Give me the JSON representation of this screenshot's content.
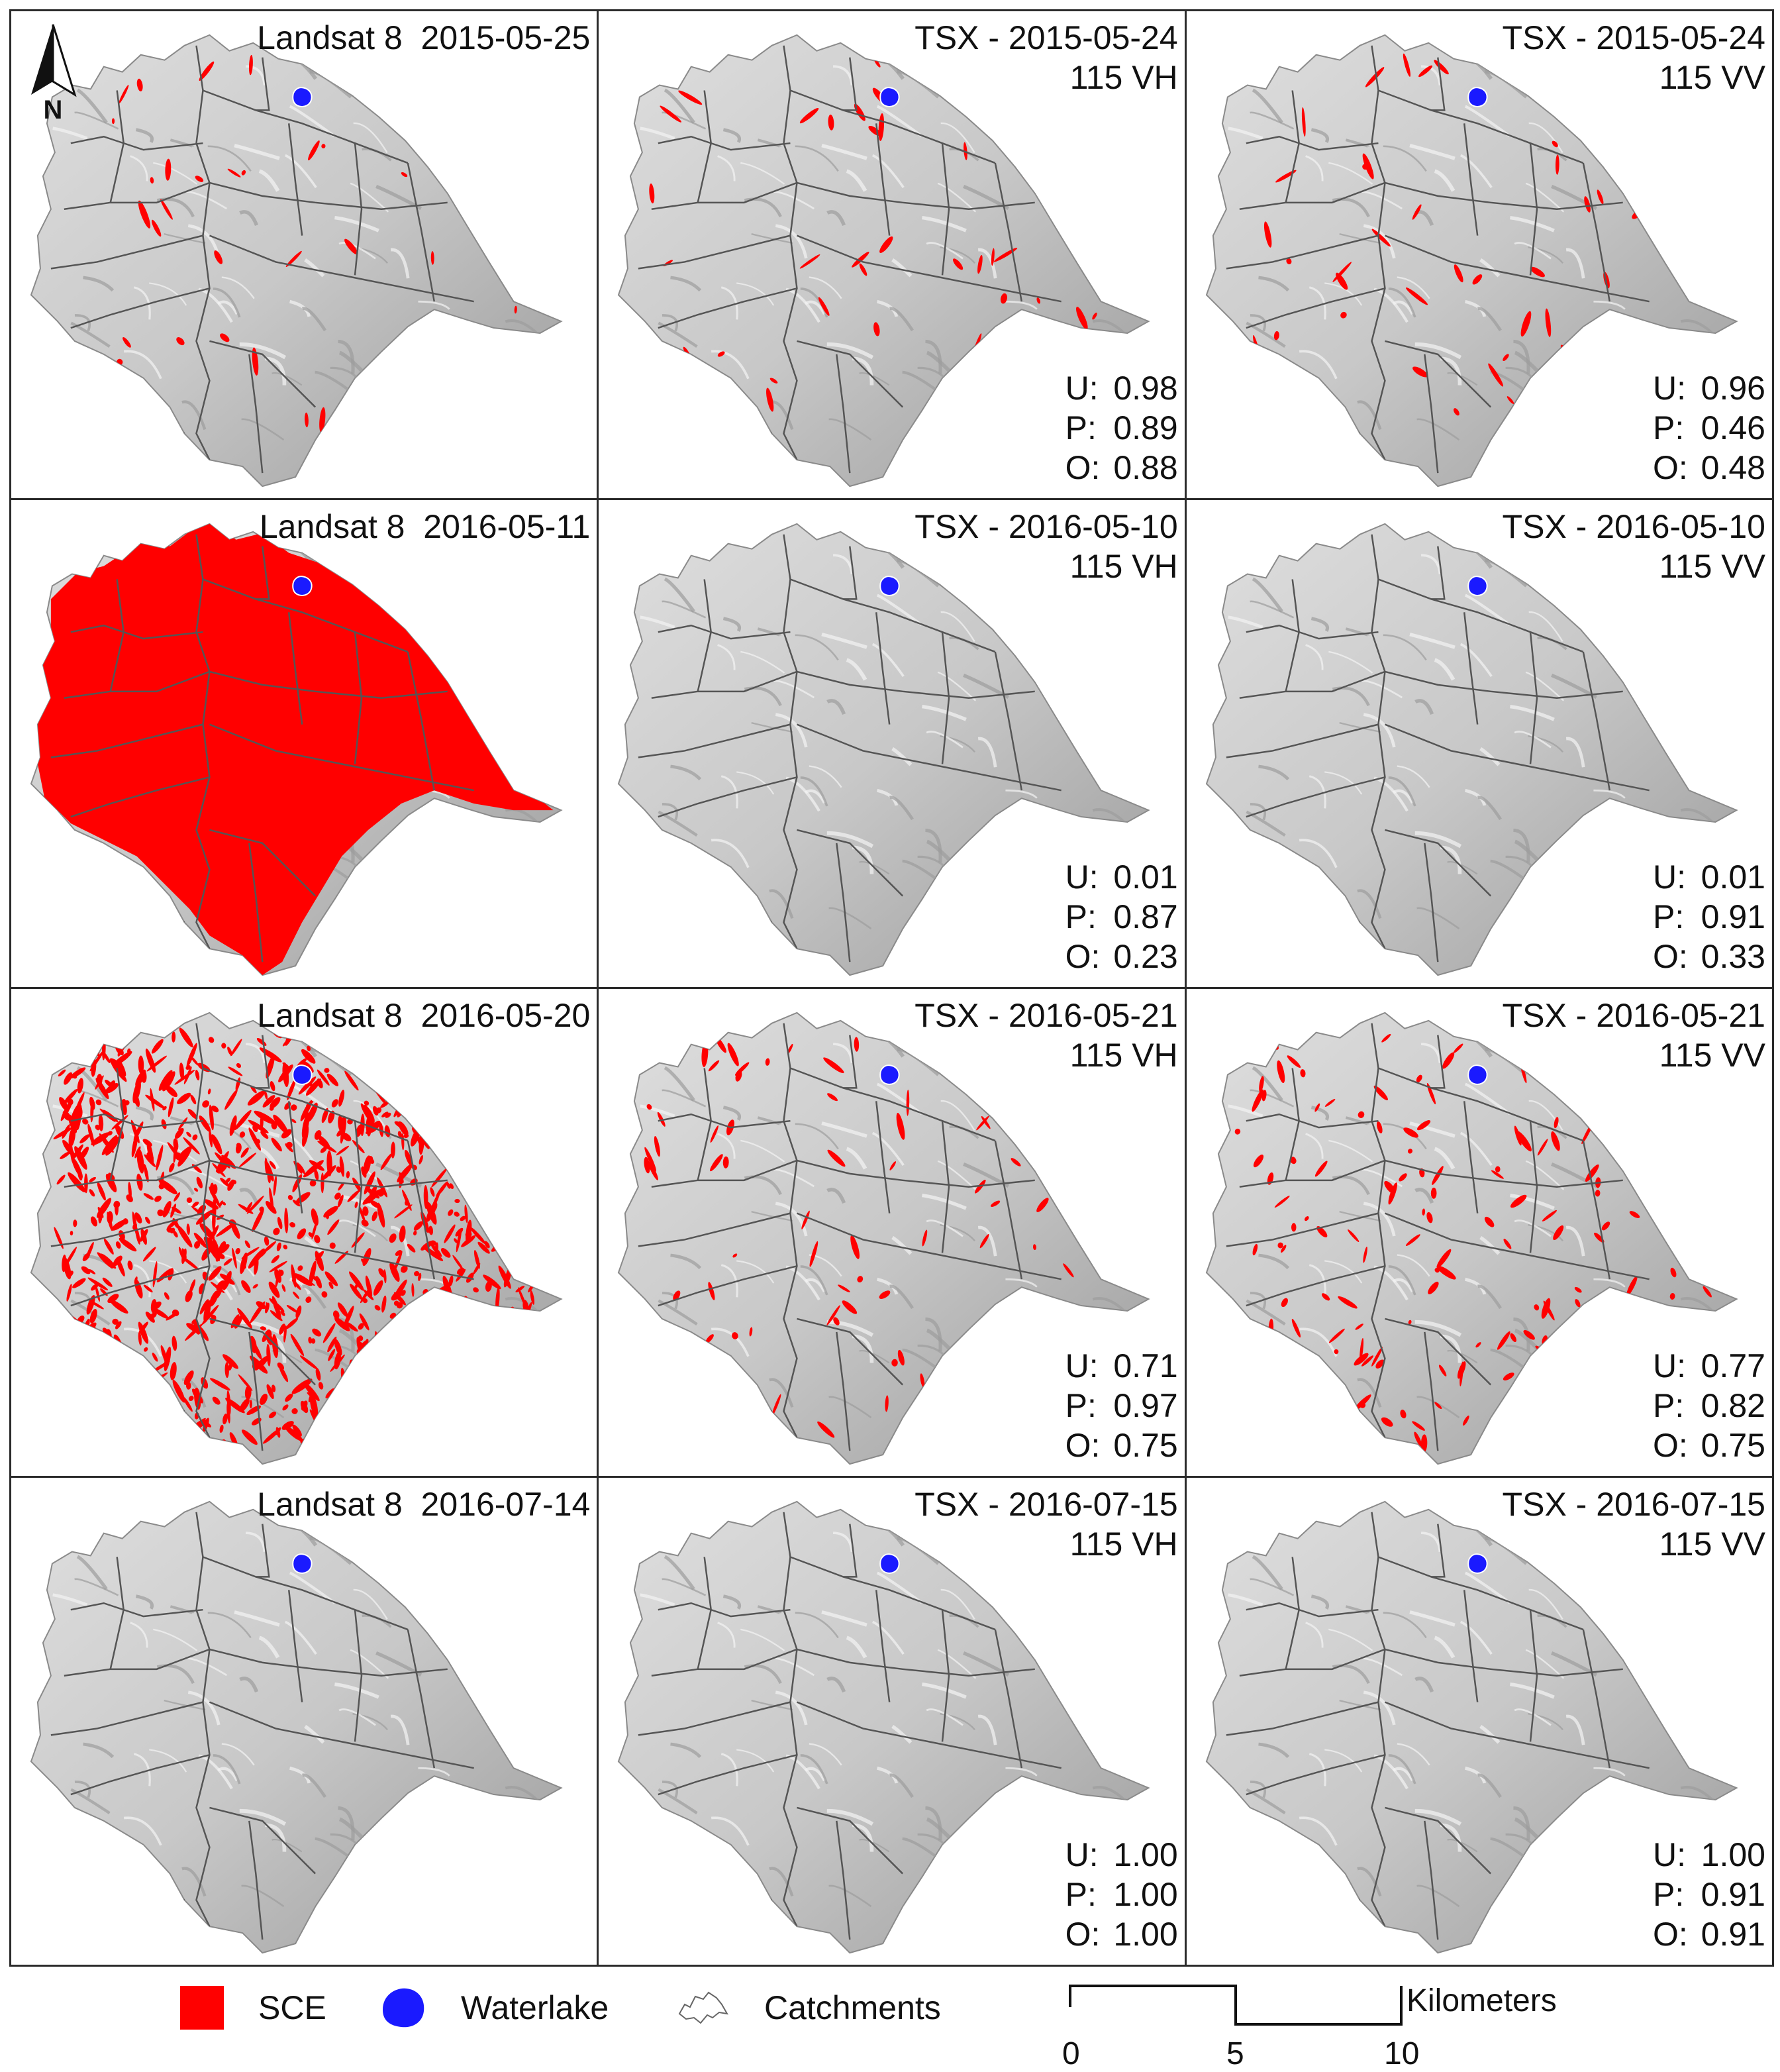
{
  "panels": [
    {
      "id": "r1c1",
      "row": 0,
      "col": 0,
      "title_lines": [
        "Landsat 8  2015-05-25"
      ],
      "metrics": [],
      "sce": "few"
    },
    {
      "id": "r1c2",
      "row": 0,
      "col": 1,
      "title_lines": [
        "TSX - 2015-05-24",
        "115 VH"
      ],
      "metrics": [
        {
          "k": "U:",
          "v": "0.98"
        },
        {
          "k": "P:",
          "v": "0.89"
        },
        {
          "k": "O:",
          "v": "0.88"
        }
      ],
      "sce": "few"
    },
    {
      "id": "r1c3",
      "row": 0,
      "col": 2,
      "title_lines": [
        "TSX - 2015-05-24",
        "115 VV"
      ],
      "metrics": [
        {
          "k": "U:",
          "v": "0.96"
        },
        {
          "k": "P:",
          "v": "0.46"
        },
        {
          "k": "O:",
          "v": "0.48"
        }
      ],
      "sce": "few"
    },
    {
      "id": "r2c1",
      "row": 1,
      "col": 0,
      "title_lines": [
        "Landsat 8  2016-05-11"
      ],
      "metrics": [],
      "sce": "full"
    },
    {
      "id": "r2c2",
      "row": 1,
      "col": 1,
      "title_lines": [
        "TSX - 2016-05-10",
        "115 VH"
      ],
      "metrics": [
        {
          "k": "U:",
          "v": "0.01"
        },
        {
          "k": "P:",
          "v": "0.87"
        },
        {
          "k": "O:",
          "v": "0.23"
        }
      ],
      "sce": "none"
    },
    {
      "id": "r2c3",
      "row": 1,
      "col": 2,
      "title_lines": [
        "TSX - 2016-05-10",
        "115 VV"
      ],
      "metrics": [
        {
          "k": "U:",
          "v": "0.01"
        },
        {
          "k": "P:",
          "v": "0.91"
        },
        {
          "k": "O:",
          "v": "0.33"
        }
      ],
      "sce": "none"
    },
    {
      "id": "r3c1",
      "row": 2,
      "col": 0,
      "title_lines": [
        "Landsat 8  2016-05-20"
      ],
      "metrics": [],
      "sce": "dense"
    },
    {
      "id": "r3c2",
      "row": 2,
      "col": 1,
      "title_lines": [
        "TSX - 2016-05-21",
        "115 VH"
      ],
      "metrics": [
        {
          "k": "U:",
          "v": "0.71"
        },
        {
          "k": "P:",
          "v": "0.97"
        },
        {
          "k": "O:",
          "v": "0.75"
        }
      ],
      "sce": "some"
    },
    {
      "id": "r3c3",
      "row": 2,
      "col": 2,
      "title_lines": [
        "TSX - 2016-05-21",
        "115 VV"
      ],
      "metrics": [
        {
          "k": "U:",
          "v": "0.77"
        },
        {
          "k": "P:",
          "v": "0.82"
        },
        {
          "k": "O:",
          "v": "0.75"
        }
      ],
      "sce": "medium"
    },
    {
      "id": "r4c1",
      "row": 3,
      "col": 0,
      "title_lines": [
        "Landsat 8  2016-07-14"
      ],
      "metrics": [],
      "sce": "none"
    },
    {
      "id": "r4c2",
      "row": 3,
      "col": 1,
      "title_lines": [
        "TSX - 2016-07-15",
        "115 VH"
      ],
      "metrics": [
        {
          "k": "U:",
          "v": "1.00"
        },
        {
          "k": "P:",
          "v": "1.00"
        },
        {
          "k": "O:",
          "v": "1.00"
        }
      ],
      "sce": "none"
    },
    {
      "id": "r4c3",
      "row": 3,
      "col": 2,
      "title_lines": [
        "TSX - 2016-07-15",
        "115 VV"
      ],
      "metrics": [
        {
          "k": "U:",
          "v": "1.00"
        },
        {
          "k": "P:",
          "v": "0.91"
        },
        {
          "k": "O:",
          "v": "0.91"
        }
      ],
      "sce": "none"
    }
  ],
  "north_label": "N",
  "legend": {
    "sce_label": "SCE",
    "waterlake_label": "Waterlake",
    "catchments_label": "Catchments",
    "scale_unit": "Kilometers",
    "scale_ticks": [
      "0",
      "5",
      "10"
    ]
  },
  "colors": {
    "sce": "#ff0000",
    "waterlake": "#1a1aff",
    "terrain_light": "#dedede",
    "terrain_dark": "#9a9a9a",
    "catchment_line": "#555555"
  }
}
